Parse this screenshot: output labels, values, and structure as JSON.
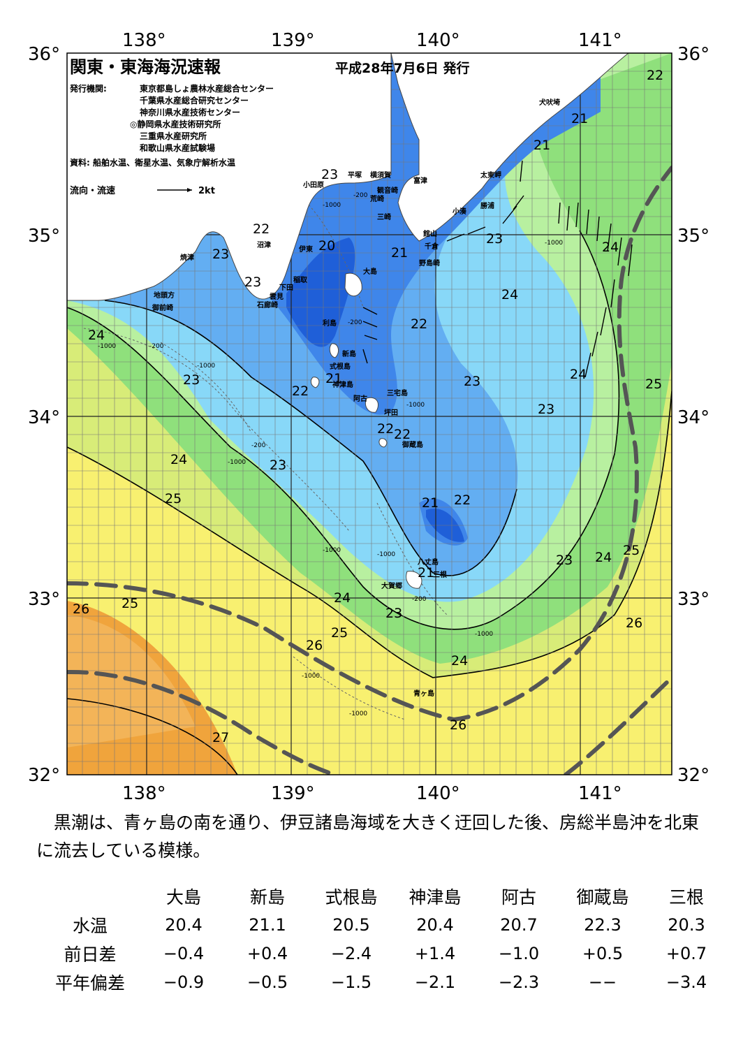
{
  "title": "関東・東海海況速報",
  "date": "平成28年7月6日 発行",
  "issuer_label": "発行機関:",
  "issuers": [
    "東京都島しょ農林水産総合センター",
    "千葉県水産総合研究センター",
    "神奈川県水産技術センター",
    "◎静岡県水産技術研究所",
    "三重県水産研究所",
    "和歌山県水産試験場"
  ],
  "sources": "資料: 船舶水温、衛星水温、気象庁解析水温",
  "legend": {
    "label": "流向・流速",
    "scale": "2kt"
  },
  "axes": {
    "lon_labels": [
      "138°",
      "139°",
      "140°",
      "141°"
    ],
    "lat_labels": [
      "36°",
      "35°",
      "34°",
      "33°",
      "32°"
    ]
  },
  "colors": {
    "land": "#ffffff",
    "t20": "#1f5fd8",
    "t21": "#3f86ea",
    "t22": "#63aef2",
    "t23": "#88d8f8",
    "t24": "#b8f0a0",
    "t25": "#8fe07c",
    "t26": "#f8f070",
    "t27": "#f0a43c",
    "kuroshio": "#555555"
  },
  "place_labels": [
    "犬吠埼",
    "太東岬",
    "勝浦",
    "小湊",
    "富津",
    "館山",
    "千倉",
    "野島崎",
    "横須賀",
    "観音崎",
    "平塚",
    "小田原",
    "荒崎",
    "三崎",
    "沼津",
    "伊東",
    "焼津",
    "稲取",
    "下田",
    "雲見",
    "石廊崎",
    "地頭方",
    "御前崎",
    "大島",
    "利島",
    "新島",
    "式根島",
    "神津島",
    "三宅島",
    "阿古",
    "坪田",
    "御蔵島",
    "八丈島",
    "三根",
    "大賀郷",
    "青ヶ島"
  ],
  "isotherm_labels": [
    "20",
    "21",
    "21",
    "21",
    "21",
    "21",
    "21",
    "22",
    "22",
    "22",
    "22",
    "22",
    "22",
    "22",
    "23",
    "23",
    "23",
    "23",
    "23",
    "23",
    "23",
    "23",
    "23",
    "23",
    "24",
    "24",
    "24",
    "24",
    "24",
    "24",
    "24",
    "24",
    "25",
    "25",
    "25",
    "25",
    "25",
    "26",
    "26",
    "26",
    "26",
    "27",
    "27"
  ],
  "depth_labels": [
    "-200",
    "-1000"
  ],
  "summary": "黒潮は、青ヶ島の南を通り、伊豆諸島海域を大きく迂回した後、房総半島沖を北東に流去している模様。",
  "table": {
    "columns": [
      "大島",
      "新島",
      "式根島",
      "神津島",
      "阿古",
      "御蔵島",
      "三根"
    ],
    "rows": [
      {
        "label": "水温",
        "values": [
          "20.4",
          "21.1",
          "20.5",
          "20.4",
          "20.7",
          "22.3",
          "20.3"
        ]
      },
      {
        "label": "前日差",
        "values": [
          "−0.4",
          "+0.4",
          "−2.4",
          "+1.4",
          "−1.0",
          "+0.5",
          "+0.7"
        ]
      },
      {
        "label": "平年偏差",
        "values": [
          "−0.9",
          "−0.5",
          "−1.5",
          "−2.1",
          "−2.3",
          "−−",
          "−3.4"
        ]
      }
    ]
  }
}
